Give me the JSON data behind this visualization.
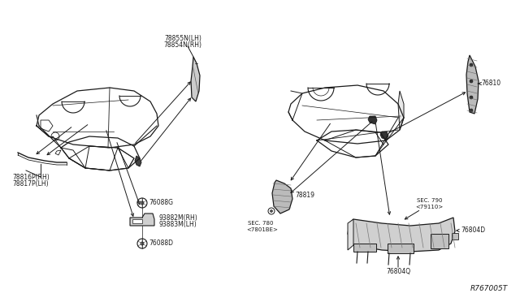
{
  "bg_color": "#ffffff",
  "lc": "#1a1a1a",
  "fs": 5.5,
  "fs_ref": 5.0,
  "fs_wm": 6.5,
  "labels": {
    "l1a": "78854N(RH)",
    "l1b": "78855N(LH)",
    "l2a": "78816P(RH)",
    "l2b": "78817P(LH)",
    "l3": "76088G",
    "l4a": "93882M(RH)",
    "l4b": "93883M(LH)",
    "l5": "76088D",
    "l6": "78819",
    "l7a": "SEC. 780",
    "l7b": "<7801BE>",
    "l8": "76810",
    "l9a": "SEC. 790",
    "l9b": "<79110>",
    "l10": "76804D",
    "l11": "76804Q",
    "wm": "R767005T"
  }
}
